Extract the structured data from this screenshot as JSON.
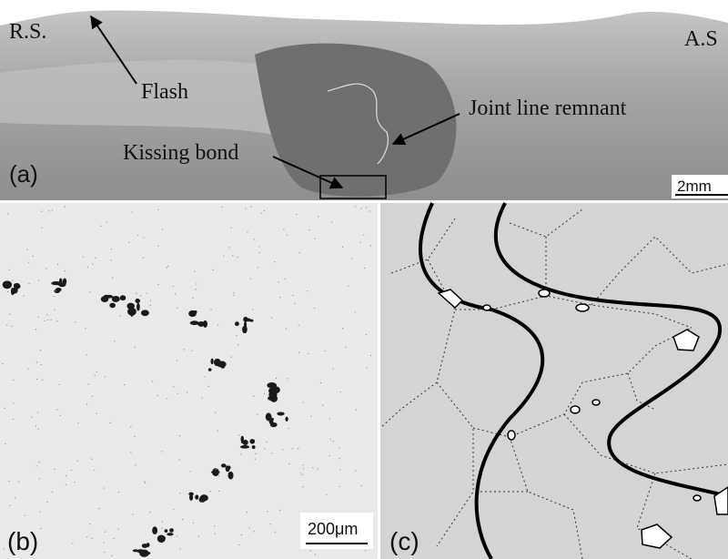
{
  "panel_a": {
    "label": "(a)",
    "side_left": "R.S.",
    "side_right": "A.S",
    "flash": "Flash",
    "joint_line": "Joint line remnant",
    "kissing_bond": "Kissing bond",
    "scale_bar": "2mm"
  },
  "panel_b": {
    "label": "(b)",
    "scale_bar": "200μm"
  },
  "panel_c": {
    "label": "(c)"
  }
}
